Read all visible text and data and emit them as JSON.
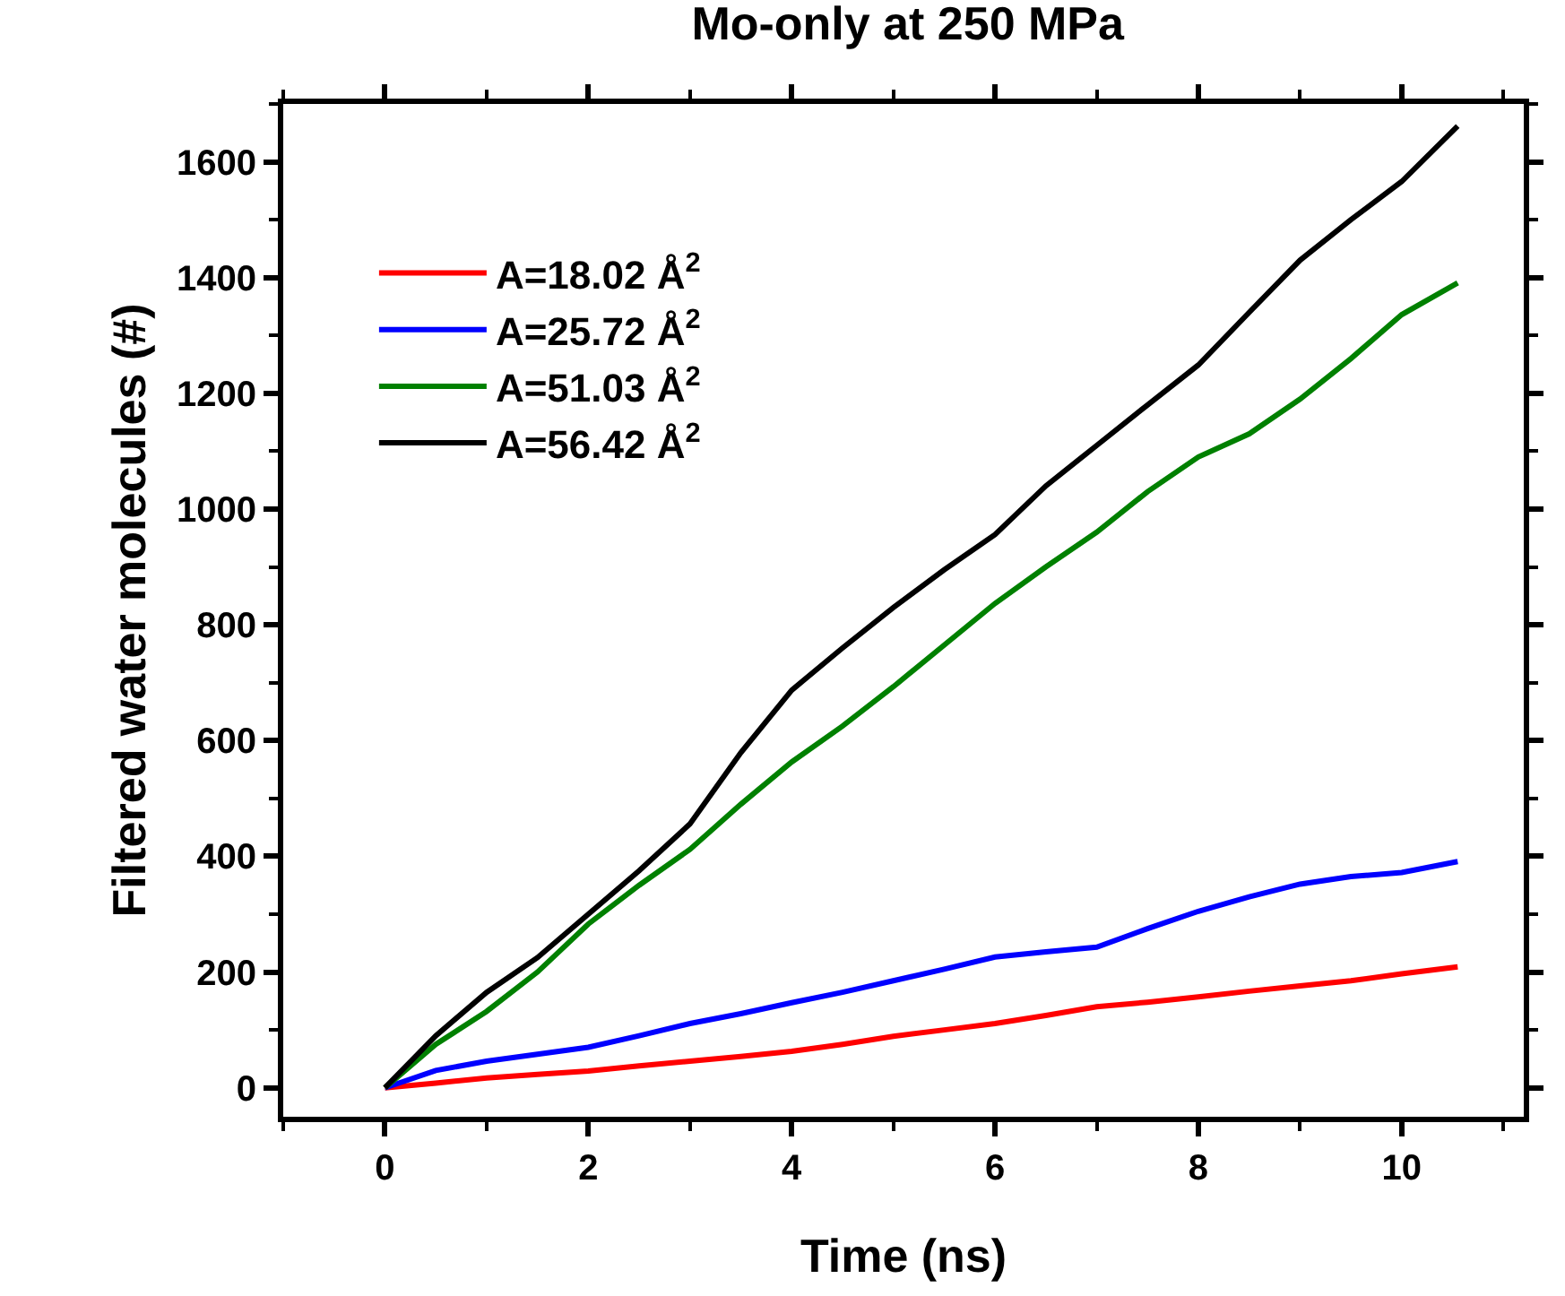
{
  "chart_data": {
    "type": "line",
    "title": "Mo-only at 250 MPa",
    "xlabel": "Time (ns)",
    "ylabel": "Filtered water molecules (#)",
    "x": [
      0,
      0.5,
      1,
      1.5,
      2,
      2.5,
      3,
      3.5,
      4,
      4.5,
      5,
      5.5,
      6,
      6.5,
      7,
      7.5,
      8,
      8.5,
      9,
      9.5,
      10,
      10.55
    ],
    "series": [
      {
        "name": "A=18.02 Å$^{2}$",
        "color": "#ff0000",
        "values": [
          0,
          8,
          17,
          23,
          29,
          38,
          46,
          54,
          63,
          75,
          89,
          100,
          111,
          125,
          140,
          148,
          157,
          167,
          176,
          185,
          197,
          209
        ]
      },
      {
        "name": "A=25.72 Å$^{2}$",
        "color": "#0000ff",
        "values": [
          0,
          30,
          46,
          58,
          70,
          90,
          111,
          128,
          147,
          165,
          185,
          205,
          226,
          235,
          243,
          275,
          305,
          330,
          352,
          365,
          372,
          391
        ]
      },
      {
        "name": "A=51.03 Å$^{2}$",
        "color": "#008000",
        "values": [
          0,
          75,
          132,
          200,
          283,
          350,
          412,
          490,
          563,
          625,
          693,
          765,
          837,
          900,
          960,
          1030,
          1090,
          1130,
          1190,
          1260,
          1336,
          1391
        ]
      },
      {
        "name": "A=56.42 Å$^{2}$",
        "color": "#000000",
        "values": [
          0,
          90,
          165,
          225,
          300,
          375,
          456,
          579,
          687,
          760,
          830,
          895,
          956,
          1040,
          1110,
          1180,
          1249,
          1340,
          1430,
          1500,
          1566,
          1662
        ]
      }
    ],
    "xlim": [
      -1,
      11.2
    ],
    "xticks": [
      0,
      2,
      4,
      6,
      8,
      10
    ],
    "ylim": [
      -50,
      1700
    ],
    "yticks": [
      0,
      200,
      400,
      600,
      800,
      1000,
      1200,
      1400,
      1600
    ],
    "legend": "top left",
    "marker": "none",
    "line_style": "solid"
  }
}
